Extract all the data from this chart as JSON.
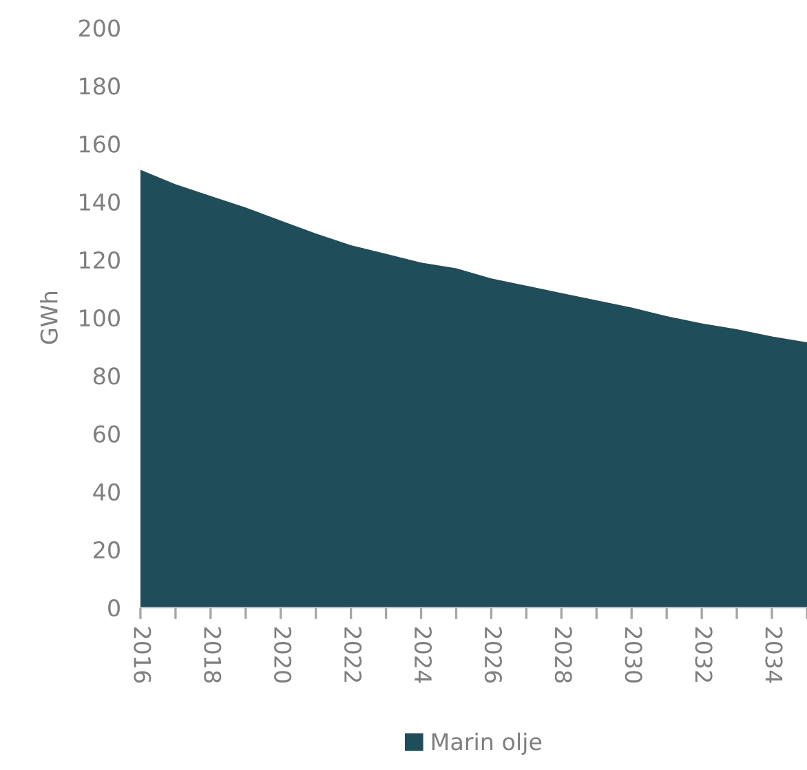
{
  "chart_data": {
    "type": "area",
    "ylabel": "GWh",
    "x": [
      2016,
      2017,
      2018,
      2019,
      2020,
      2021,
      2022,
      2023,
      2024,
      2025,
      2026,
      2027,
      2028,
      2029,
      2030,
      2031,
      2032,
      2033,
      2034,
      2035
    ],
    "series": [
      {
        "name": "Marin olje",
        "color": "#1f4e5a",
        "values": [
          151,
          146,
          142,
          138,
          133.5,
          129,
          125,
          122,
          119,
          117,
          113.5,
          111,
          108.5,
          106,
          103.5,
          100.5,
          98,
          96,
          93.5,
          91.5
        ]
      }
    ],
    "xlim": [
      2016,
      2035
    ],
    "xticks": [
      2016,
      {
        "value": 2017,
        "label": null
      },
      2018,
      {
        "value": 2019,
        "label": null
      },
      2020,
      {
        "value": 2021,
        "label": null
      },
      2022,
      {
        "value": 2023,
        "label": null
      },
      2024,
      {
        "value": 2025,
        "label": null
      },
      2026,
      {
        "value": 2027,
        "label": null
      },
      2028,
      {
        "value": 2029,
        "label": null
      },
      2030,
      {
        "value": 2031,
        "label": null
      },
      2032,
      {
        "value": 2033,
        "label": null
      },
      2034,
      {
        "value": 2035,
        "label": null
      }
    ],
    "ylim": [
      0,
      200
    ],
    "yticks": [
      0,
      20,
      40,
      60,
      80,
      100,
      120,
      140,
      160,
      180,
      200
    ],
    "grid": false,
    "legend": "bottom"
  }
}
